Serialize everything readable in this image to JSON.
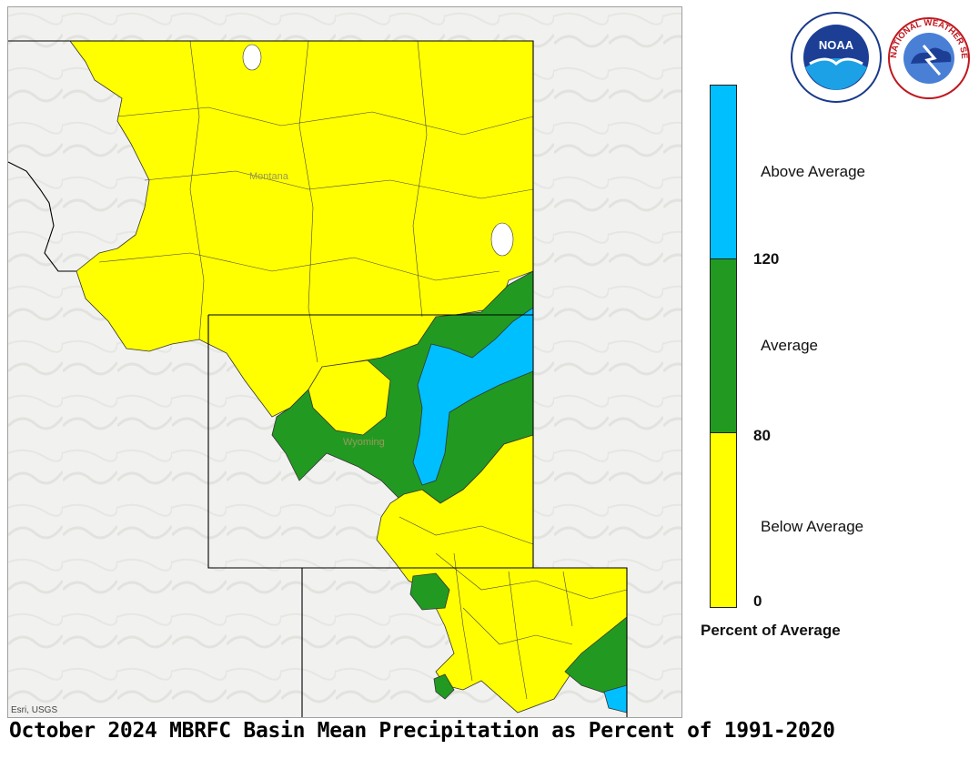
{
  "title": "October 2024 MBRFC Basin Mean Precipitation as Percent of 1991-2020",
  "map": {
    "credit": "Esri, USGS",
    "state_labels": [
      "Montana",
      "Wyoming"
    ]
  },
  "legend": {
    "classes": [
      {
        "label": "Above Average",
        "color": "#00bfff"
      },
      {
        "label": "Average",
        "color": "#229a22"
      },
      {
        "label": "Below Average",
        "color": "#ffff00"
      }
    ],
    "breaks": [
      "120",
      "80",
      "0"
    ],
    "caption": "Percent of Average"
  },
  "logos": {
    "noaa": {
      "text": "NOAA"
    },
    "nws": {
      "text": "NATIONAL WEATHER SERVICE"
    }
  }
}
